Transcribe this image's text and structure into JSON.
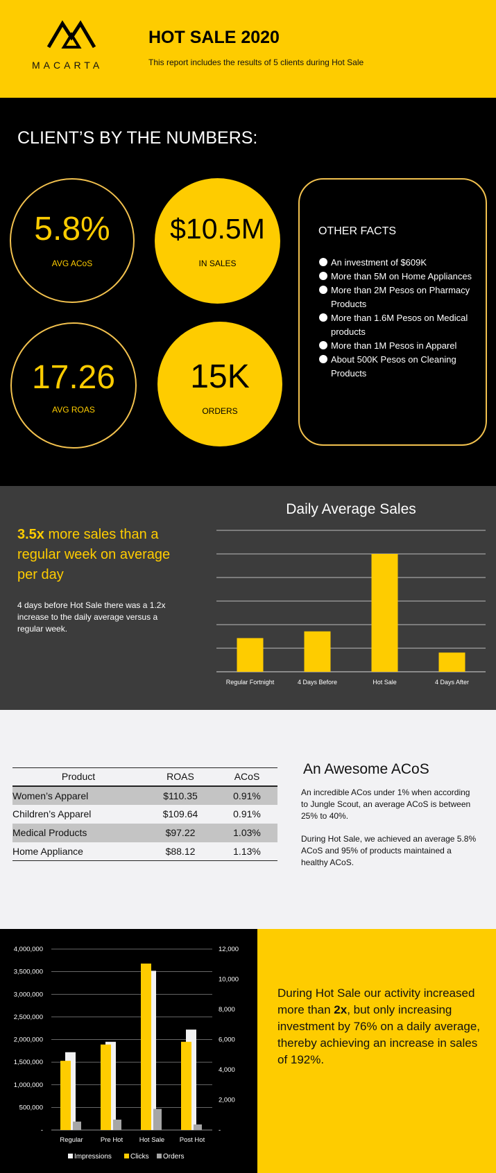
{
  "header": {
    "logo_text": "MACARTA",
    "title": "HOT SALE 2020",
    "subtitle": "This report includes the results of 5 clients during Hot Sale"
  },
  "numbers": {
    "heading": "CLIENT’S BY THE NUMBERS:",
    "stats": [
      {
        "value": "5.8%",
        "label": "AVG ACoS"
      },
      {
        "value": "$10.5M",
        "label": "IN SALES"
      },
      {
        "value": "17.26",
        "label": "AVG ROAS"
      },
      {
        "value": "15K",
        "label": "ORDERS"
      }
    ],
    "facts_title": "OTHER FACTS",
    "facts": [
      "An investment of $609K",
      "More than 5M on Home Appliances",
      "More than 2M Pesos on Pharmacy Products",
      "More than 1.6M Pesos on Medical products",
      "More than 1M Pesos in Apparel",
      "About 500K Pesos on Cleaning Products"
    ]
  },
  "daily": {
    "headline_strong": "3.5x",
    "headline_rest": " more sales than a regular week on average per day",
    "body": "4 days before Hot Sale there was a 1.2x increase to the daily average versus a regular week."
  },
  "acos": {
    "table_headers": [
      "Product",
      "ROAS",
      "ACoS"
    ],
    "rows": [
      [
        "Women’s Apparel",
        "$110.35",
        "0.91%"
      ],
      [
        "Children’s Apparel",
        "$109.64",
        "0.91%"
      ],
      [
        "Medical Products",
        "$97.22",
        "1.03%"
      ],
      [
        "Home Appliance",
        "$88.12",
        "1.13%"
      ]
    ],
    "title": "An Awesome ACoS",
    "para1": "An incredible ACos under 1% when according to Jungle Scout, an average ACoS is between 25% to 40%.",
    "para2": "During Hot Sale, we achieved an average 5.8% ACoS and 95% of products maintained a healthy ACoS."
  },
  "activity": {
    "text_pre": "During Hot Sale our activity increased more than ",
    "text_strong": "2x",
    "text_post": ", but only increasing investment by 76% on a daily average, thereby achieving an increase in sales of 192%."
  },
  "colors": {
    "yellow": "#fecc00",
    "black": "#000000",
    "dark_gray": "#3c3c3c",
    "light_bg": "#f2f2f4",
    "circle_outline": "#f2c14e"
  },
  "chart_data": [
    {
      "type": "bar",
      "title": "Daily Average Sales",
      "categories": [
        "Regular Fortnight",
        "4 Days Before",
        "Hot Sale",
        "4 Days After"
      ],
      "values": [
        1.0,
        1.2,
        3.5,
        0.57
      ],
      "grid": true
    },
    {
      "type": "bar",
      "title": "",
      "categories": [
        "Regular",
        "Pre Hot",
        "Hot Sale",
        "Post Hot"
      ],
      "series": [
        {
          "name": "Impressions",
          "axis": "left",
          "values": [
            1720000,
            1950000,
            3520000,
            2220000
          ]
        },
        {
          "name": "Clicks",
          "axis": "left",
          "values": [
            1530000,
            1890000,
            3680000,
            1950000
          ]
        },
        {
          "name": "Orders",
          "axis": "right",
          "values": [
            560,
            690,
            1400,
            370
          ]
        }
      ],
      "ylim_left": [
        0,
        4000000
      ],
      "ylim_right": [
        0,
        12000
      ],
      "yticks_left": [
        "-",
        "500,000",
        "1,000,000",
        "1,500,000",
        "2,000,000",
        "2,500,000",
        "3,000,000",
        "3,500,000",
        "4,000,000"
      ],
      "yticks_right": [
        "-",
        "2,000",
        "4,000",
        "6,000",
        "8,000",
        "10,000",
        "12,000"
      ],
      "legend": "bottom",
      "grid": true
    }
  ]
}
